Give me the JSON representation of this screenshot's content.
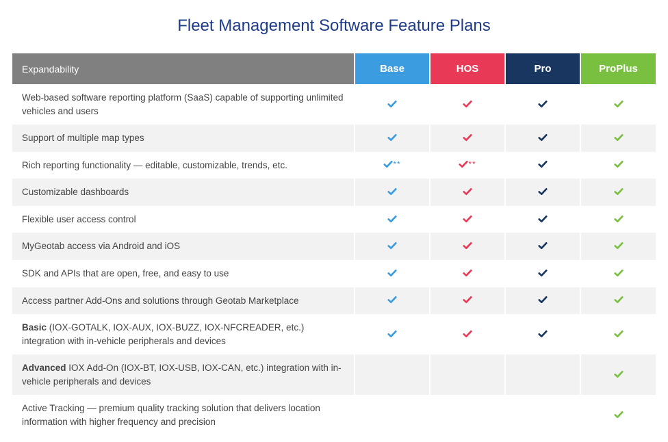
{
  "title": "Fleet Management Software Feature Plans",
  "section_header": "Expandability",
  "colors": {
    "title": "#1f3c88",
    "section_header_bg": "#808080",
    "row_alt_bg": "#f2f2f2",
    "text": "#444444"
  },
  "plans": [
    {
      "key": "base",
      "label": "Base",
      "bg": "#3b9cdf",
      "check": "#3b9cdf",
      "ast": "#3b9cdf"
    },
    {
      "key": "hos",
      "label": "HOS",
      "bg": "#e83a56",
      "check": "#e83a56",
      "ast": "#e83a56"
    },
    {
      "key": "pro",
      "label": "Pro",
      "bg": "#18365f",
      "check": "#18365f",
      "ast": "#18365f"
    },
    {
      "key": "proplus",
      "label": "ProPlus",
      "bg": "#79c041",
      "check": "#79c041",
      "ast": "#79c041"
    }
  ],
  "features": [
    {
      "label_html": "Web-based software reporting platform (SaaS) capable of supporting unlimited vehicles and users",
      "cells": {
        "base": {
          "check": true
        },
        "hos": {
          "check": true
        },
        "pro": {
          "check": true
        },
        "proplus": {
          "check": true
        }
      }
    },
    {
      "label_html": "Support of multiple map types",
      "cells": {
        "base": {
          "check": true
        },
        "hos": {
          "check": true
        },
        "pro": {
          "check": true
        },
        "proplus": {
          "check": true
        }
      }
    },
    {
      "label_html": "Rich reporting functionality — editable, customizable, trends, etc.",
      "cells": {
        "base": {
          "check": true,
          "asterisks": "**"
        },
        "hos": {
          "check": true,
          "asterisks": "**"
        },
        "pro": {
          "check": true
        },
        "proplus": {
          "check": true
        }
      }
    },
    {
      "label_html": "Customizable dashboards",
      "cells": {
        "base": {
          "check": true
        },
        "hos": {
          "check": true
        },
        "pro": {
          "check": true
        },
        "proplus": {
          "check": true
        }
      }
    },
    {
      "label_html": "Flexible user access control",
      "cells": {
        "base": {
          "check": true
        },
        "hos": {
          "check": true
        },
        "pro": {
          "check": true
        },
        "proplus": {
          "check": true
        }
      }
    },
    {
      "label_html": "MyGeotab access via Android and iOS",
      "cells": {
        "base": {
          "check": true
        },
        "hos": {
          "check": true
        },
        "pro": {
          "check": true
        },
        "proplus": {
          "check": true
        }
      }
    },
    {
      "label_html": "SDK and APIs that are open, free, and easy to use",
      "cells": {
        "base": {
          "check": true
        },
        "hos": {
          "check": true
        },
        "pro": {
          "check": true
        },
        "proplus": {
          "check": true
        }
      }
    },
    {
      "label_html": "Access partner Add-Ons and solutions through Geotab Marketplace",
      "cells": {
        "base": {
          "check": true
        },
        "hos": {
          "check": true
        },
        "pro": {
          "check": true
        },
        "proplus": {
          "check": true
        }
      }
    },
    {
      "label_html": "<b>Basic</b> (IOX-GOTALK, IOX-AUX, IOX-BUZZ, IOX-NFCREADER, etc.) integration with in-vehicle peripherals and devices",
      "cells": {
        "base": {
          "check": true
        },
        "hos": {
          "check": true
        },
        "pro": {
          "check": true
        },
        "proplus": {
          "check": true
        }
      }
    },
    {
      "label_html": "<b>Advanced</b> IOX Add-On (IOX-BT, IOX-USB, IOX-CAN, etc.) integration with in-vehicle peripherals and devices",
      "cells": {
        "base": {
          "check": false
        },
        "hos": {
          "check": false
        },
        "pro": {
          "check": false
        },
        "proplus": {
          "check": true
        }
      }
    },
    {
      "label_html": "Active Tracking — premium quality tracking solution that delivers location information with higher frequency and precision",
      "cells": {
        "base": {
          "check": false
        },
        "hos": {
          "check": false
        },
        "pro": {
          "check": false
        },
        "proplus": {
          "check": true
        }
      }
    }
  ]
}
